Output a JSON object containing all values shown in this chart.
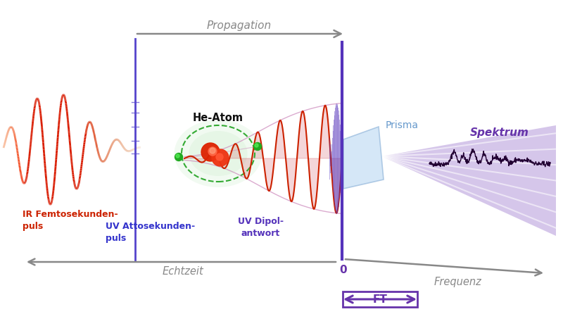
{
  "bg_color": "#ffffff",
  "ir_color": "#cc2200",
  "uv_line_color": "#4444bb",
  "purple_color": "#6633aa",
  "spectrum_color": "#6633aa",
  "gray_color": "#999999",
  "he_atom_label": "He-Atom",
  "ir_label": "IR Femtosekunden-\npuls",
  "uv_label": "UV Attosekunden-\npuls",
  "dipole_label": "UV Dipol-\nantwort",
  "prisma_label": "Prisma",
  "spektrum_label": "Spektrum",
  "echtzeit_label": "Echtzeit",
  "frequenz_label": "Frequenz",
  "propagation_label": "Propagation",
  "ft_label": "FT",
  "zero_label": "0",
  "figsize": [
    8.0,
    4.63
  ],
  "dpi": 100
}
